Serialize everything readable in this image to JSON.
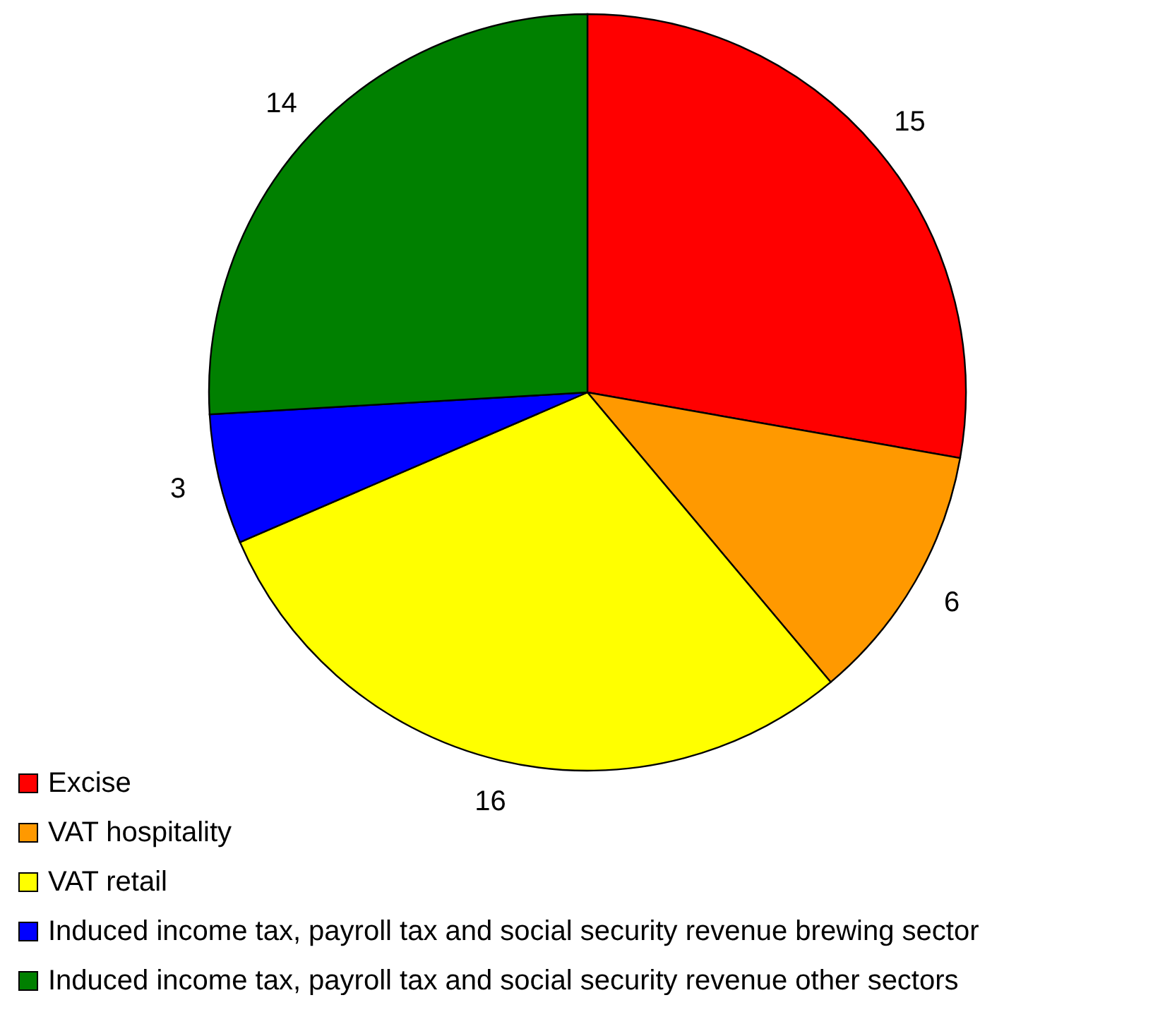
{
  "chart_data": {
    "type": "pie",
    "categories": [
      "Excise",
      "VAT hospitality",
      "VAT retail",
      "Induced income tax, payroll tax and social security revenue brewing sector",
      "Induced income tax, payroll tax and social security revenue other sectors"
    ],
    "values": [
      15,
      6,
      16,
      3,
      14
    ],
    "colors": [
      "#ff0000",
      "#ff9900",
      "#ffff00",
      "#0000ff",
      "#008000"
    ],
    "data_labels": true,
    "legend": "bottom left"
  }
}
